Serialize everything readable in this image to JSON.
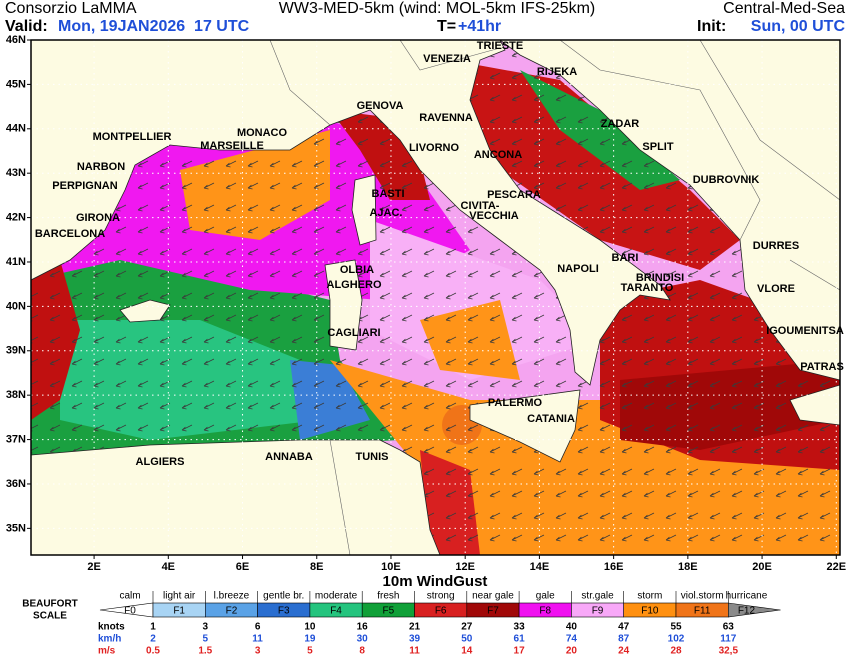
{
  "header": {
    "org": "Consorzio LaMMA",
    "model": "WW3-MED-5km (wind: MOL-5km IFS-25km)",
    "domain": "Central-Med-Sea",
    "valid_label": "Valid:",
    "valid": "Mon, 19JAN2026  17 UTC",
    "lead_label": "T=",
    "lead": "+41hr",
    "init_label": "Init:",
    "init": "Sun, 00 UTC"
  },
  "map": {
    "xlim": [
      0.3,
      22.1
    ],
    "ylim": [
      34.4,
      46
    ],
    "xticks": [
      {
        "value": 2,
        "label": "2E"
      },
      {
        "value": 4,
        "label": "4E"
      },
      {
        "value": 6,
        "label": "6E"
      },
      {
        "value": 8,
        "label": "8E"
      },
      {
        "value": 10,
        "label": "10E"
      },
      {
        "value": 12,
        "label": "12E"
      },
      {
        "value": 14,
        "label": "14E"
      },
      {
        "value": 16,
        "label": "16E"
      },
      {
        "value": 18,
        "label": "18E"
      },
      {
        "value": 20,
        "label": "20E"
      },
      {
        "value": 22,
        "label": "22E"
      }
    ],
    "yticks": [
      {
        "value": 46,
        "label": "46N"
      },
      {
        "value": 45,
        "label": "45N"
      },
      {
        "value": 44,
        "label": "44N"
      },
      {
        "value": 43,
        "label": "43N"
      },
      {
        "value": 42,
        "label": "42N"
      },
      {
        "value": 41,
        "label": "41N"
      },
      {
        "value": 40,
        "label": "40N"
      },
      {
        "value": 39,
        "label": "39N"
      },
      {
        "value": 38,
        "label": "38N"
      },
      {
        "value": 37,
        "label": "37N"
      },
      {
        "value": 36,
        "label": "36N"
      },
      {
        "value": 35,
        "label": "35N"
      }
    ],
    "cities": [
      "TRIESTE",
      "VENEZIA",
      "RIJEKA",
      "GENOVA",
      "RAVENNA",
      "ZADAR",
      "MONTPELLIER",
      "MONACO",
      "MARSEILLE",
      "LIVORNO",
      "ANCONA",
      "SPLIT",
      "NARBON",
      "DUBROVNIK",
      "PERPIGNAN",
      "PESCARA",
      "BASTI",
      "AJAC.",
      "CIVITA-",
      "VECCHIA",
      "GIRONA",
      "BARCELONA",
      "DURRES",
      "BARI",
      "OLBIA",
      "NAPOLI",
      "BRINDISI",
      "ALGHERO",
      "TARANTO",
      "VLORE",
      "IGOUMENITSA",
      "CAGLIARI",
      "PATRAS",
      "PALERMO",
      "CATANIA",
      "ALGIERS",
      "ANNABA",
      "TUNIS"
    ]
  },
  "legend": {
    "title": "10m WindGust",
    "scale_label_1": "BEAUFORT",
    "scale_label_2": "SCALE",
    "classes": [
      {
        "name": "calm",
        "force": "F0",
        "color": "#ffffff"
      },
      {
        "name": "light air",
        "force": "F1",
        "color": "#a8d4f4"
      },
      {
        "name": "l.breeze",
        "force": "F2",
        "color": "#5aa2e6"
      },
      {
        "name": "gentle br.",
        "force": "F3",
        "color": "#2a6ed0"
      },
      {
        "name": "moderate",
        "force": "F4",
        "color": "#24c47e"
      },
      {
        "name": "fresh",
        "force": "F5",
        "color": "#10a038"
      },
      {
        "name": "strong",
        "force": "F6",
        "color": "#d82020"
      },
      {
        "name": "near gale",
        "force": "F7",
        "color": "#a00808"
      },
      {
        "name": "gale",
        "force": "F8",
        "color": "#f010f0"
      },
      {
        "name": "str.gale",
        "force": "F9",
        "color": "#f8a8f8"
      },
      {
        "name": "storm",
        "force": "F10",
        "color": "#ff9010"
      },
      {
        "name": "viol.storm",
        "force": "F11",
        "color": "#f07418"
      },
      {
        "name": "hurricane",
        "force": "F12",
        "color": "#8a8a8a"
      }
    ],
    "rows": [
      {
        "unit": "knots",
        "values": [
          1,
          3,
          6,
          10,
          16,
          21,
          27,
          33,
          40,
          47,
          55,
          63
        ]
      },
      {
        "unit": "km/h",
        "values": [
          2,
          5,
          11,
          19,
          30,
          39,
          50,
          61,
          74,
          87,
          102,
          117
        ]
      },
      {
        "unit": "m/s",
        "values": [
          "0.5",
          "1.5",
          "3",
          "5",
          "8",
          "11",
          "14",
          "17",
          "20",
          "24",
          "28",
          "32,5"
        ]
      }
    ]
  }
}
